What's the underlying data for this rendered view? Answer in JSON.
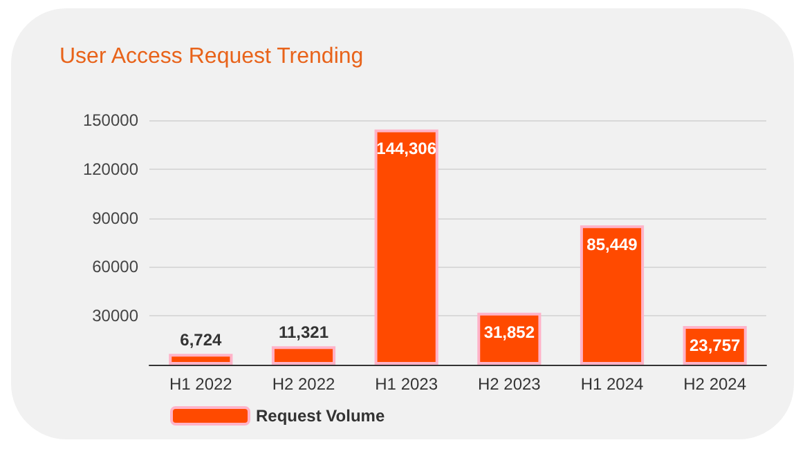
{
  "chart_data": {
    "type": "bar",
    "title": "User Access Request Trending",
    "categories": [
      "H1 2022",
      "H2 2022",
      "H1 2023",
      "H2 2023",
      "H1 2024",
      "H2 2024"
    ],
    "series": [
      {
        "name": "Request Volume",
        "color": "#ff4a00",
        "values": [
          6724,
          11321,
          144306,
          31852,
          85449,
          23757
        ]
      }
    ],
    "ylim": [
      0,
      150000
    ],
    "yticks": [
      30000,
      60000,
      90000,
      120000,
      150000
    ],
    "value_labels": [
      "6,724",
      "11,321",
      "144,306",
      "31,852",
      "85,449",
      "23,757"
    ],
    "grid": "y",
    "legend": "bottom"
  }
}
